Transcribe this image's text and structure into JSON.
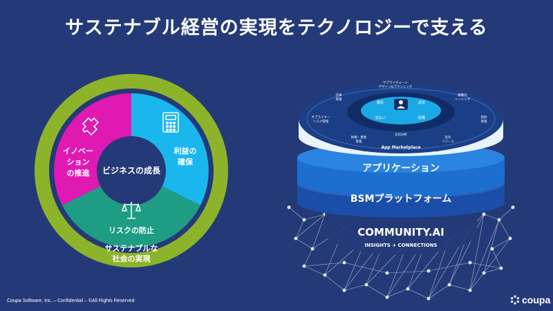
{
  "slide": {
    "title": "サステナブル経営の実現をテクノロジーで支える",
    "footer": "Coupa Software, Inc. – Confidential – ©All Rights Reserved",
    "logo_text": "coupa"
  },
  "ring_diagram": {
    "center": "ビジネスの成長",
    "innovation_line1": "イノベー",
    "innovation_line2": "ション",
    "innovation_line3": "の推進",
    "profit_line1": "利益の",
    "profit_line2": "確保",
    "risk": "リスクの防止",
    "outer_line1": "サステナブルな",
    "outer_line2": "社会の実現",
    "colors": {
      "outer": "#8db32b",
      "innovation": "#e019b3",
      "profit": "#1ab7ee",
      "risk": "#1e9d84",
      "core": "#243a78"
    }
  },
  "platform": {
    "layer_app": "アプリケーション",
    "layer_bsm": "BSMプラットフォーム",
    "marketplace": "App Marketplace",
    "community_title": "COMMUNITY.AI",
    "community_sub": "INSIGHTS + CONNECTIONS",
    "top_labels": [
      "サプライチェーン",
      "デザイン&プランニング",
      "戦略的",
      "ソーシング",
      "契約",
      "管理",
      "社外",
      "リソース",
      "支出分析",
      "財務・資金",
      "管理",
      "サプライヤー",
      "リスク管理",
      "在庫",
      "管理"
    ],
    "inner_labels": [
      "購買",
      "請求",
      "支払い",
      "経費"
    ]
  }
}
